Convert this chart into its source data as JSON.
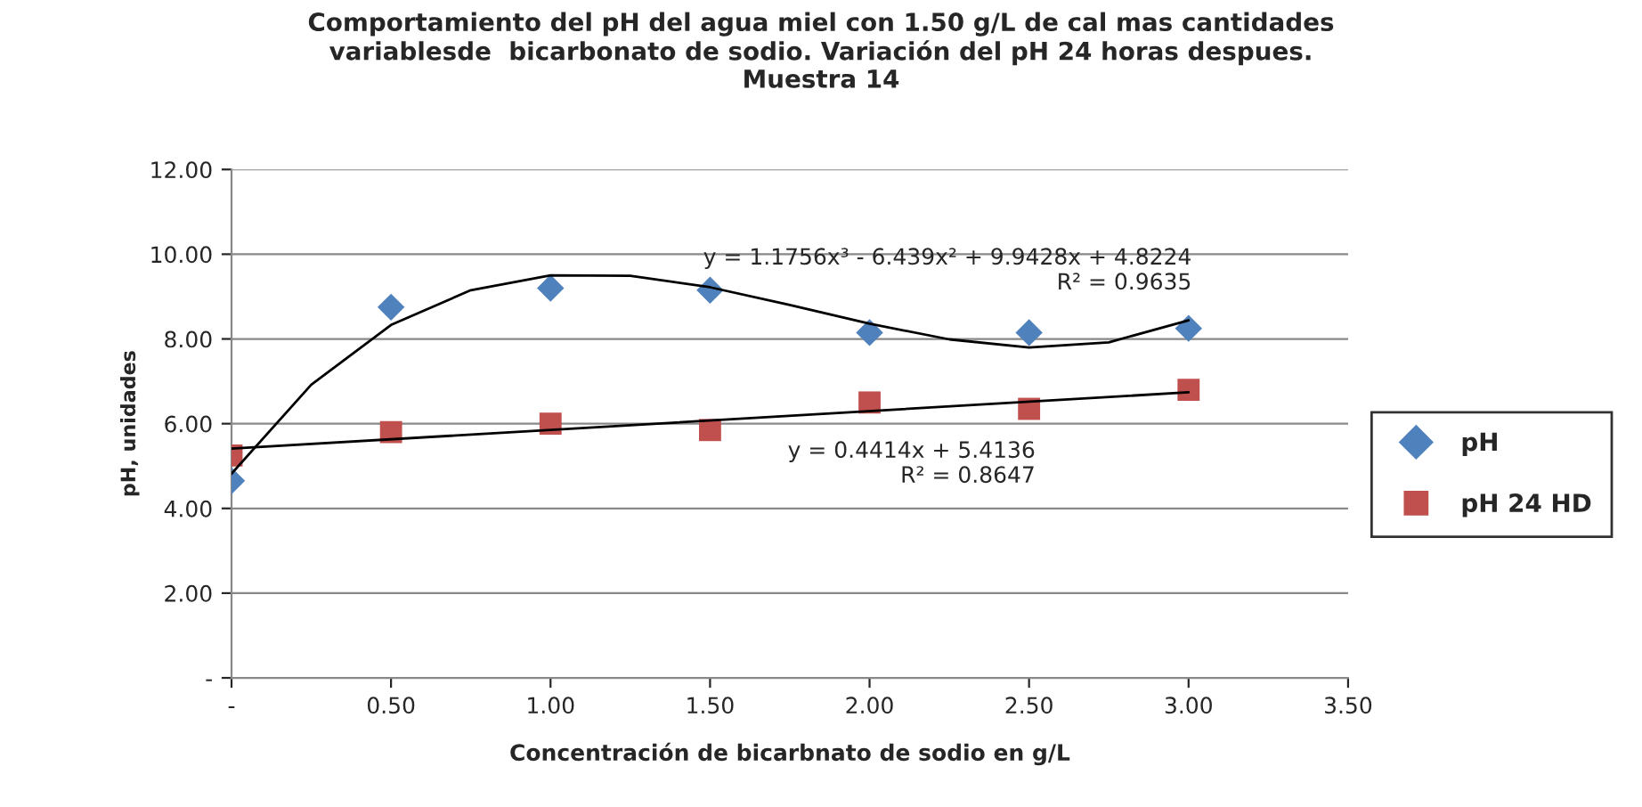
{
  "chart_data": {
    "type": "scatter",
    "title": "Comportamiento del pH del agua miel con 1.50 g/L de cal mas cantidades\nvariablesde  bicarbonato de sodio. Variación del pH 24 horas despues.\nMuestra 14",
    "xlabel": "Concentración de bicarbnato de sodio en g/L",
    "ylabel": "pH, unidades",
    "xlim": [
      0,
      3.5
    ],
    "xticks": [
      {
        "value": 0,
        "label": "-"
      },
      {
        "value": 0.5,
        "label": "0.50"
      },
      {
        "value": 1,
        "label": "1.00"
      },
      {
        "value": 1.5,
        "label": "1.50"
      },
      {
        "value": 2,
        "label": "2.00"
      },
      {
        "value": 2.5,
        "label": "2.50"
      },
      {
        "value": 3,
        "label": "3.00"
      },
      {
        "value": 3.5,
        "label": "3.50"
      }
    ],
    "ylim": [
      0,
      12
    ],
    "yticks": [
      {
        "value": 0,
        "label": "-"
      },
      {
        "value": 2,
        "label": "2.00"
      },
      {
        "value": 4,
        "label": "4.00"
      },
      {
        "value": 6,
        "label": "6.00"
      },
      {
        "value": 8,
        "label": "8.00"
      },
      {
        "value": 10,
        "label": "10.00"
      },
      {
        "value": 12,
        "label": "12.00"
      }
    ],
    "grid": "y",
    "legend": "right",
    "series": [
      {
        "name": "pH",
        "marker": "diamond",
        "color": "#4f81bd",
        "x": [
          0,
          0.5,
          1,
          1.5,
          2,
          2.5,
          3
        ],
        "values": [
          4.65,
          8.75,
          9.2,
          9.15,
          8.15,
          8.15,
          8.25
        ]
      },
      {
        "name": "pH 24 HD",
        "marker": "square",
        "color": "#c0504d",
        "x": [
          0,
          0.5,
          1,
          1.5,
          2,
          2.5,
          3
        ],
        "values": [
          5.25,
          5.8,
          6.0,
          5.85,
          6.5,
          6.35,
          6.8
        ]
      },
      {
        "type": "line",
        "color": "#000000",
        "x": [
          0,
          0.25,
          0.5,
          0.75,
          1,
          1.25,
          1.5,
          1.75,
          2,
          2.25,
          2.5,
          2.75,
          3
        ],
        "values": [
          4.82,
          6.92,
          8.33,
          9.15,
          9.5,
          9.49,
          9.22,
          8.8,
          8.36,
          7.99,
          7.8,
          7.92,
          8.44
        ]
      },
      {
        "type": "line",
        "color": "#000000",
        "x": [
          0,
          3
        ],
        "values": [
          5.41,
          6.74
        ]
      }
    ],
    "annotations": [
      "y = 1.1756x³ - 6.439x² + 9.9428x + 4.8224\nR² = 0.9635",
      "y = 0.4414x + 5.4136\nR² = 0.8647"
    ]
  }
}
